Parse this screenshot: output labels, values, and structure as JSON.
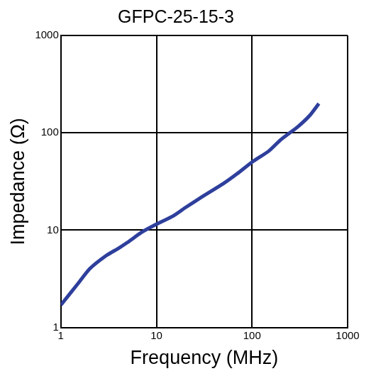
{
  "chart_data": {
    "type": "line",
    "title": "GFPC-25-15-3",
    "x_label": "Frequency (MHz)",
    "y_label": "Impedance (Ω)",
    "x": [
      1,
      1.5,
      2,
      3,
      4,
      5,
      7,
      10,
      15,
      20,
      30,
      50,
      70,
      100,
      150,
      200,
      300,
      400,
      500
    ],
    "series": [
      {
        "name": "GFPC-25-15-3",
        "color": "#2e3f9c",
        "values": [
          1.7,
          2.8,
          4.0,
          5.5,
          6.5,
          7.5,
          9.5,
          11.5,
          14,
          17,
          22,
          30,
          38,
          50,
          65,
          85,
          115,
          150,
          200
        ]
      }
    ],
    "xlim": [
      1,
      1000
    ],
    "xticks": [
      1,
      10,
      100,
      1000
    ],
    "ylim": [
      1,
      1000
    ],
    "yticks": [
      1,
      10,
      100,
      1000
    ],
    "log": true,
    "grid": true
  }
}
